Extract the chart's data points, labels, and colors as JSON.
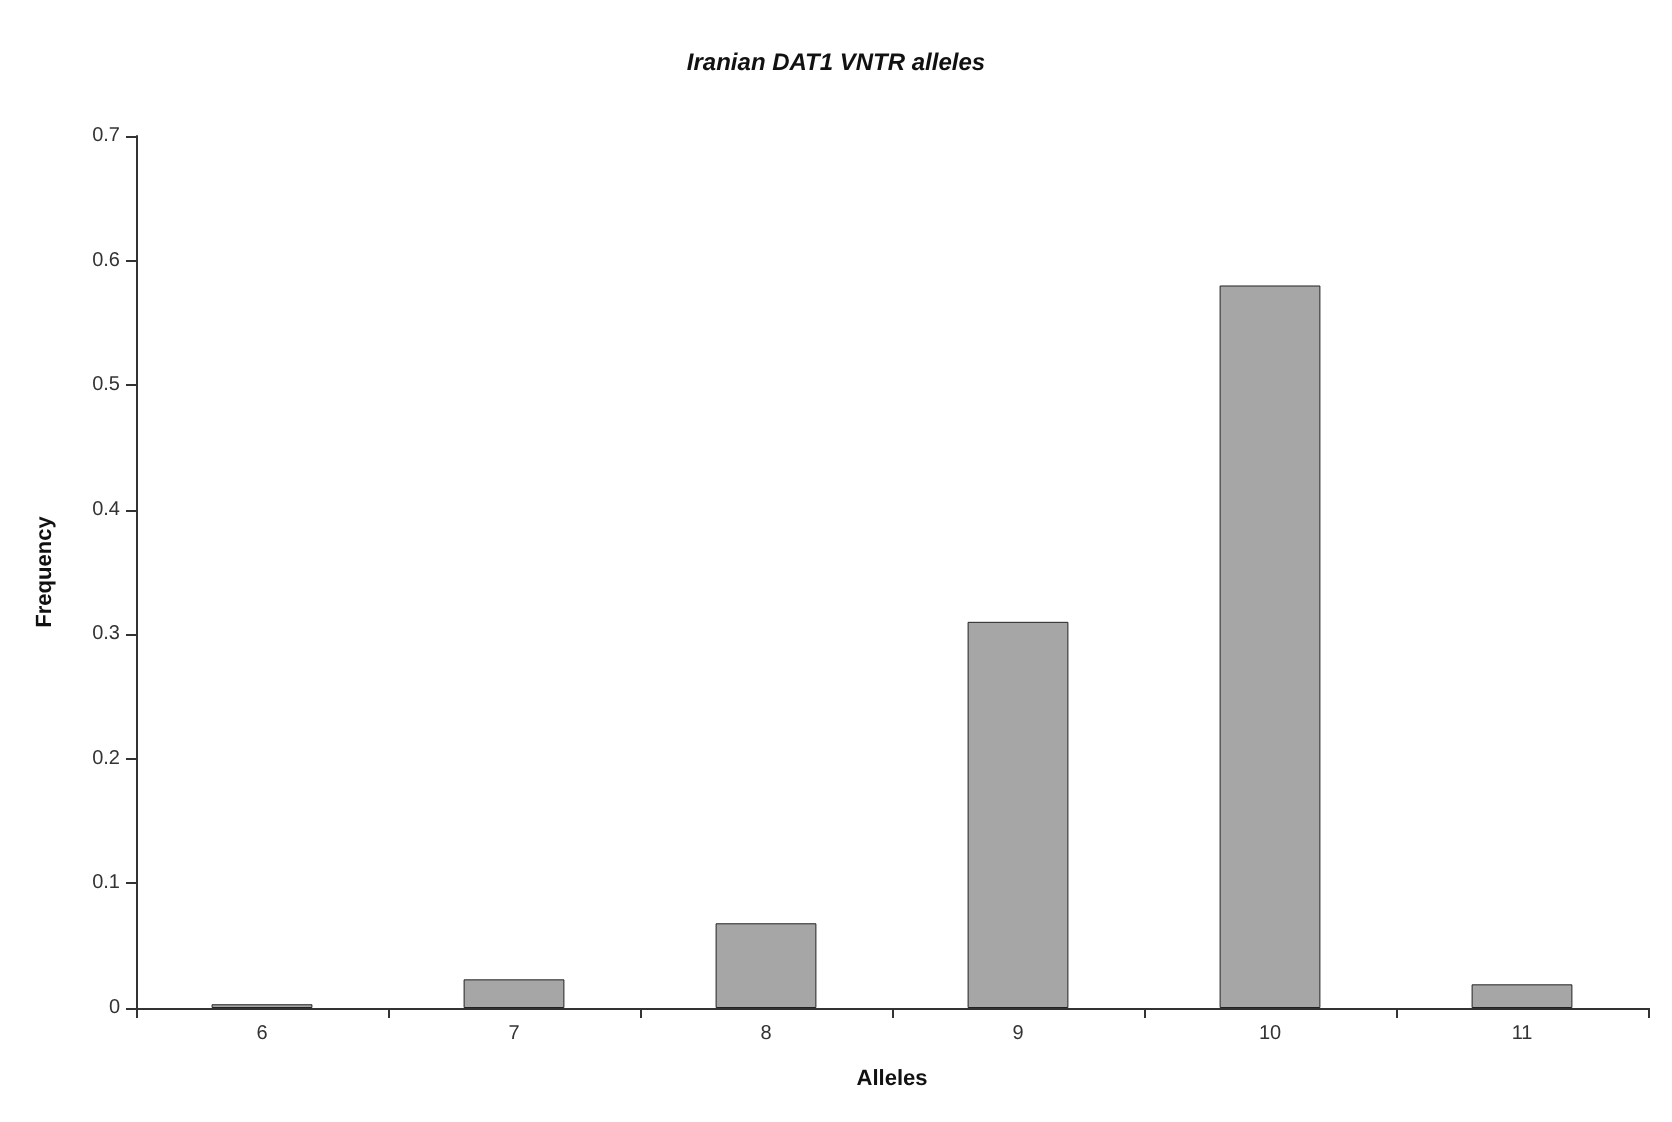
{
  "chart_data": {
    "type": "bar",
    "title": "Iranian DAT1 VNTR alleles",
    "xlabel": "Alleles",
    "ylabel": "Frequency",
    "categories": [
      "6",
      "7",
      "8",
      "9",
      "10",
      "11"
    ],
    "values": [
      0.003,
      0.023,
      0.068,
      0.31,
      0.58,
      0.019
    ],
    "color": "#a6a6a6",
    "ylim": [
      0,
      0.7
    ],
    "yticks": [
      0,
      0.1,
      0.2,
      0.3,
      0.4,
      0.5,
      0.6,
      0.7
    ],
    "grid": false
  }
}
